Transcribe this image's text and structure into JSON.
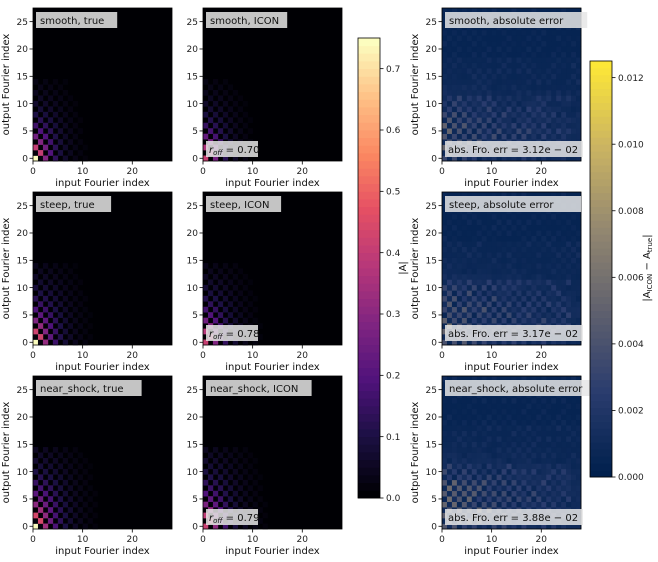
{
  "chart_data": {
    "type": "heatmap",
    "xlabel": "input Fourier index",
    "ylabel": "output Fourier index",
    "xlim": [
      0,
      27
    ],
    "ylim": [
      0,
      27
    ],
    "xticks": [
      0,
      10,
      20
    ],
    "yticks": [
      0,
      5,
      10,
      15,
      20,
      25
    ],
    "panels": [
      {
        "title": "smooth, true",
        "row": 0,
        "col": 0
      },
      {
        "title": "smooth, ICON",
        "row": 0,
        "col": 1,
        "annotation": "r_off = 0.70",
        "annotation_main": "r",
        "annotation_sub": "off",
        "annotation_rest": " = 0.70"
      },
      {
        "title": "smooth, absolute error",
        "row": 0,
        "col": 2,
        "annotation": "abs. Fro. err = 3.12e−02",
        "annotation_main": "abs. Fro. err  = 3.12",
        "annotation_sub": "",
        "annotation_rest": "e − 02"
      },
      {
        "title": "steep, true",
        "row": 1,
        "col": 0
      },
      {
        "title": "steep, ICON",
        "row": 1,
        "col": 1,
        "annotation": "r_off = 0.78",
        "annotation_main": "r",
        "annotation_sub": "off",
        "annotation_rest": " = 0.78"
      },
      {
        "title": "steep, absolute error",
        "row": 1,
        "col": 2,
        "annotation": "abs. Fro. err = 3.17e−02",
        "annotation_main": "abs. Fro. err  = 3.17",
        "annotation_sub": "",
        "annotation_rest": "e − 02"
      },
      {
        "title": "near_shock, true",
        "row": 2,
        "col": 0
      },
      {
        "title": "near_shock, ICON",
        "row": 2,
        "col": 1,
        "annotation": "r_off = 0.79",
        "annotation_main": "r",
        "annotation_sub": "off",
        "annotation_rest": " = 0.79"
      },
      {
        "title": "near_shock, absolute error",
        "row": 2,
        "col": 2,
        "annotation": "abs. Fro. err = 3.88e−02",
        "annotation_main": "abs. Fro. err  = 3.88",
        "annotation_sub": "",
        "annotation_rest": "e − 02"
      }
    ],
    "colorbars": [
      {
        "label": "|A|",
        "colormap": "magma",
        "range": [
          0.0,
          0.75
        ],
        "ticks": [
          "0.0",
          "0.1",
          "0.2",
          "0.3",
          "0.4",
          "0.5",
          "0.6",
          "0.7"
        ]
      },
      {
        "label": "|A_ICON − A_true|",
        "colormap": "cividis",
        "range": [
          0.0,
          0.0125
        ],
        "ticks": [
          "0.000",
          "0.002",
          "0.004",
          "0.006",
          "0.008",
          "0.010",
          "0.012"
        ]
      }
    ]
  }
}
